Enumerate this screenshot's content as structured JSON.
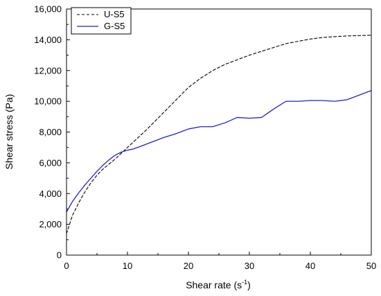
{
  "chart_data": {
    "type": "line",
    "title": "",
    "xlabel": "Shear rate (s",
    "xlabel_sup": "-1",
    "xlabel_end": ")",
    "ylabel": "Shear stress (Pa)",
    "xlim": [
      0,
      50
    ],
    "ylim": [
      0,
      16000
    ],
    "xticks": [
      0,
      10,
      20,
      30,
      40,
      50
    ],
    "xtick_labels": [
      "0",
      "10",
      "20",
      "30",
      "40",
      "50"
    ],
    "yticks": [
      0,
      2000,
      4000,
      6000,
      8000,
      10000,
      12000,
      14000,
      16000
    ],
    "ytick_labels": [
      "0",
      "2,000",
      "4,000",
      "6,000",
      "8,000",
      "10,000",
      "12,000",
      "14,000",
      "16,000"
    ],
    "grid": false,
    "legend_position": "top-left",
    "series": [
      {
        "name": "U-S5",
        "color": "#000000",
        "dash": "dashed",
        "x": [
          0,
          1,
          2,
          3,
          4,
          5,
          6,
          8,
          10,
          13,
          16,
          18,
          20,
          22,
          24,
          26,
          28,
          30,
          32,
          34,
          36,
          38,
          40,
          42,
          44,
          46,
          48,
          50
        ],
        "y": [
          1400,
          2600,
          3400,
          4100,
          4700,
          5200,
          5600,
          6250,
          7000,
          8100,
          9300,
          10100,
          10900,
          11500,
          12000,
          12400,
          12700,
          13000,
          13250,
          13500,
          13750,
          13900,
          14050,
          14150,
          14200,
          14250,
          14270,
          14300
        ]
      },
      {
        "name": "G-S5",
        "color": "#1f1fd6",
        "dash": "solid",
        "x": [
          0,
          1,
          2,
          3,
          4,
          5,
          6,
          7,
          8,
          9,
          10,
          11,
          12,
          14,
          16,
          18,
          20,
          22,
          24,
          26,
          28,
          30,
          32,
          34,
          36,
          38,
          40,
          42,
          44,
          46,
          48,
          50
        ],
        "y": [
          2800,
          3500,
          4050,
          4550,
          5000,
          5450,
          5850,
          6200,
          6500,
          6700,
          6820,
          6900,
          7050,
          7350,
          7650,
          7900,
          8200,
          8350,
          8350,
          8600,
          8950,
          8900,
          8950,
          9500,
          10000,
          10000,
          10050,
          10050,
          10000,
          10100,
          10400,
          10700
        ]
      }
    ]
  }
}
